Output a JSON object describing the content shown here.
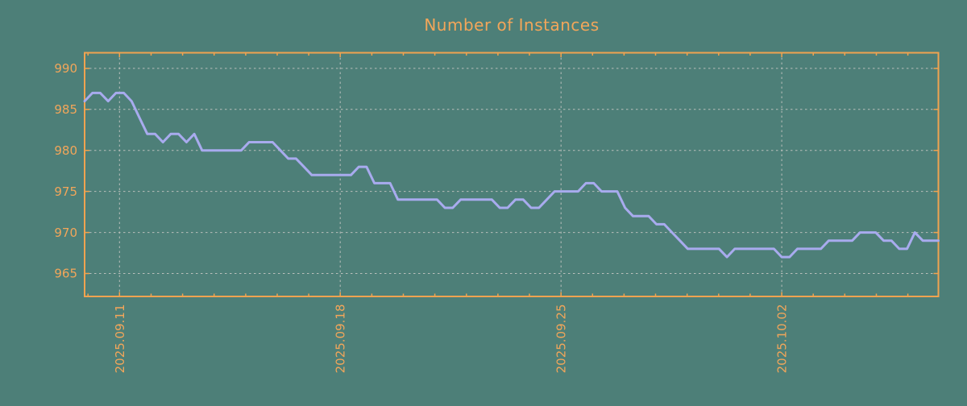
{
  "colors": {
    "background": "#4d7f78",
    "axis_border": "#f0a350",
    "label_text": "#f2a65a",
    "series_line": "#a8abee",
    "gridline": "#b9bfbb"
  },
  "chart_data": {
    "type": "line",
    "title": "Number of Instances",
    "xlabel": "",
    "ylabel": "",
    "grid": "dashed",
    "legend_position": "none",
    "ylim": [
      962.2,
      991.9
    ],
    "y_tick_values": [
      990,
      985,
      980,
      975,
      970,
      965
    ],
    "y_tick_labels": [
      "990",
      "985",
      "980",
      "975",
      "970",
      "965"
    ],
    "x_tick_labels": [
      "2025.09.11",
      "2025.09.18",
      "2025.09.25",
      "2025.10.02"
    ],
    "x_major_tick_interval_days": 7,
    "x_minor_tick_interval_days": 1,
    "series": [
      {
        "name": "instances",
        "points_per_day": 4,
        "values": [
          986,
          987,
          987,
          986,
          987,
          987,
          986,
          984,
          982,
          982,
          981,
          982,
          982,
          981,
          982,
          980,
          980,
          980,
          980,
          980,
          980,
          981,
          981,
          981,
          981,
          980,
          979,
          979,
          978,
          977,
          977,
          977,
          977,
          977,
          977,
          978,
          978,
          976,
          976,
          976,
          974,
          974,
          974,
          974,
          974,
          974,
          973,
          973,
          974,
          974,
          974,
          974,
          974,
          973,
          973,
          974,
          974,
          973,
          973,
          974,
          975,
          975,
          975,
          975,
          976,
          976,
          975,
          975,
          975,
          973,
          972,
          972,
          972,
          971,
          971,
          970,
          969,
          968,
          968,
          968,
          968,
          968,
          967,
          968,
          968,
          968,
          968,
          968,
          968,
          967,
          967,
          968,
          968,
          968,
          968,
          969,
          969,
          969,
          969,
          970,
          970,
          970,
          969,
          969,
          968,
          968,
          970,
          969,
          969,
          969
        ]
      }
    ]
  }
}
